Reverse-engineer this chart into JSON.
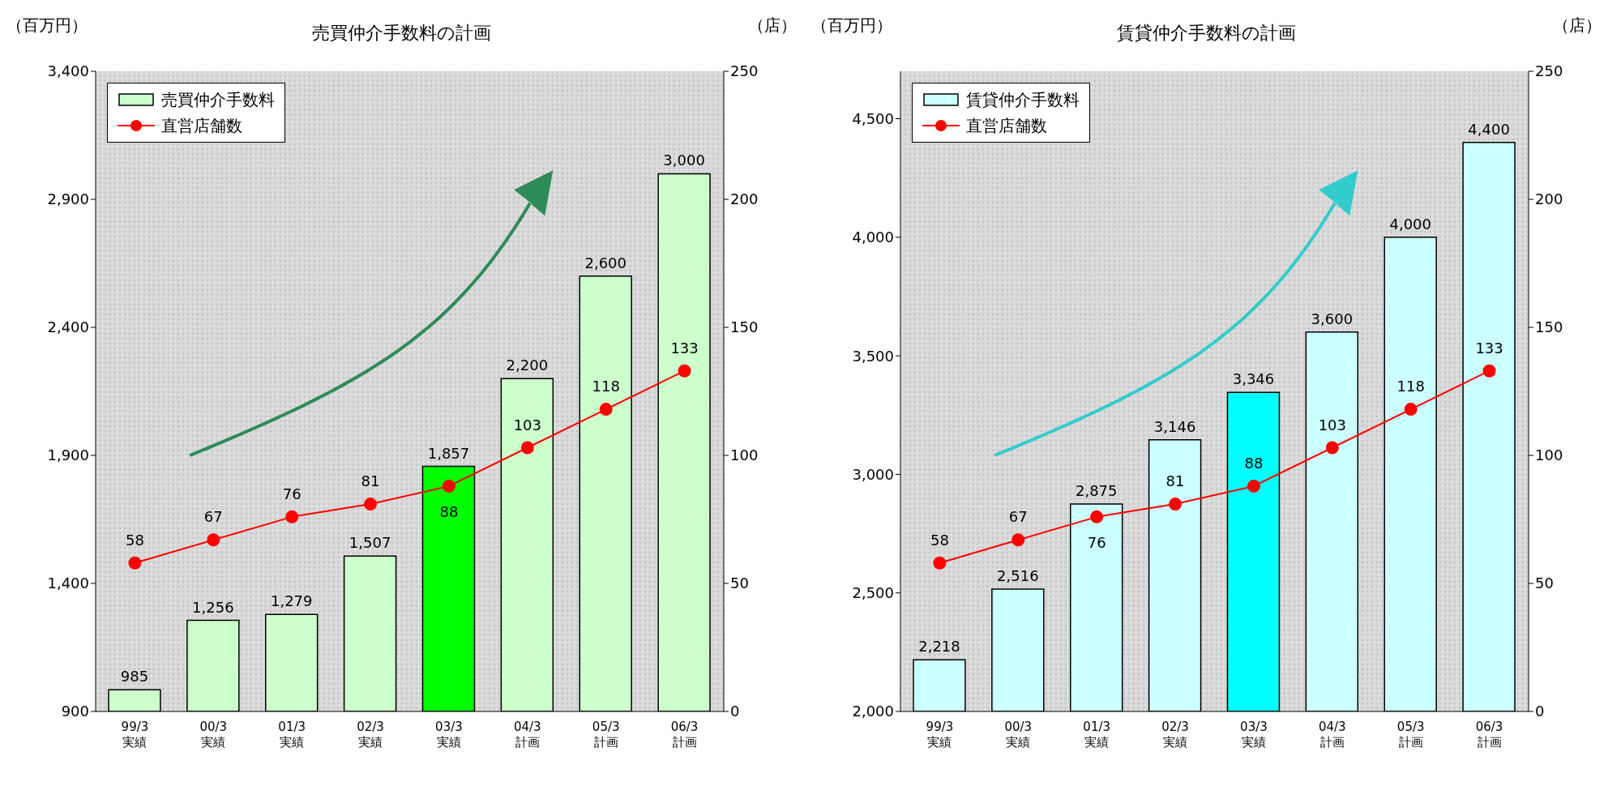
{
  "chart_data": [
    {
      "type": "bar",
      "title": "売買仲介手数料の計画",
      "ylabel": "（百万円）",
      "y2label": "（店）",
      "categories": [
        "99/3\n実績",
        "00/3\n実績",
        "01/3\n実績",
        "02/3\n実績",
        "03/3\n実績",
        "04/3\n計画",
        "05/3\n計画",
        "06/3\n計画"
      ],
      "series": [
        {
          "name": "売買仲介手数料",
          "color": "#ccffcc",
          "colors": [
            "#ccffcc",
            "#ccffcc",
            "#ccffcc",
            "#ccffcc",
            "#00ff00",
            "#ccffcc",
            "#ccffcc",
            "#ccffcc"
          ],
          "values": [
            985,
            1256,
            1279,
            1507,
            1857,
            2200,
            2600,
            3000
          ],
          "value_labels": [
            "985",
            "1,256",
            "1,279",
            "1,507",
            "1,857",
            "2,200",
            "2,600",
            "3,000"
          ]
        },
        {
          "name": "直営店舗数",
          "type": "line",
          "axis": "y2",
          "color": "#ff0000",
          "values": [
            58,
            67,
            76,
            81,
            88,
            103,
            118,
            133
          ],
          "value_labels": [
            "58",
            "67",
            "76",
            "81",
            "88",
            "103",
            "118",
            "133"
          ]
        }
      ],
      "ylim": [
        900,
        3400
      ],
      "yticks": [
        {
          "value": 900,
          "label": "900"
        },
        {
          "value": 1400,
          "label": "1,400"
        },
        {
          "value": 1900,
          "label": "1,900"
        },
        {
          "value": 2400,
          "label": "2,400"
        },
        {
          "value": 2900,
          "label": "2,900"
        },
        {
          "value": 3400,
          "label": "3,400"
        }
      ],
      "y2lim": [
        0,
        250
      ],
      "y2ticks": [
        0,
        50,
        100,
        150,
        200,
        250
      ],
      "legend": "top left",
      "marker": "circle",
      "grid": false
    },
    {
      "type": "bar",
      "title": "賃貸仲介手数料の計画",
      "ylabel": "（百万円）",
      "y2label": "（店）",
      "categories": [
        "99/3\n実績",
        "00/3\n実績",
        "01/3\n実績",
        "02/3\n実績",
        "03/3\n実績",
        "04/3\n計画",
        "05/3\n計画",
        "06/3\n計画"
      ],
      "series": [
        {
          "name": "賃貸仲介手数料",
          "color": "#ccffff",
          "colors": [
            "#ccffff",
            "#ccffff",
            "#ccffff",
            "#ccffff",
            "#00ffff",
            "#ccffff",
            "#ccffff",
            "#ccffff"
          ],
          "values": [
            2218,
            2516,
            2875,
            3146,
            3346,
            3600,
            4000,
            4400
          ],
          "value_labels": [
            "2,218",
            "2,516",
            "2,875",
            "3,146",
            "3,346",
            "3,600",
            "4,000",
            "4,400"
          ]
        },
        {
          "name": "直営店舗数",
          "type": "line",
          "axis": "y2",
          "color": "#ff0000",
          "values": [
            58,
            67,
            76,
            81,
            88,
            103,
            118,
            133
          ],
          "value_labels": [
            "58",
            "67",
            "76",
            "81",
            "88",
            "103",
            "118",
            "133"
          ]
        }
      ],
      "ylim": [
        2000,
        4700
      ],
      "yticks": [
        {
          "value": 2000,
          "label": "2,000"
        },
        {
          "value": 2500,
          "label": "2,500"
        },
        {
          "value": 3000,
          "label": "3,000"
        },
        {
          "value": 3500,
          "label": "3,500"
        },
        {
          "value": 4000,
          "label": "4,000"
        },
        {
          "value": 4500,
          "label": "4,500"
        }
      ],
      "y2lim": [
        0,
        250
      ],
      "y2ticks": [
        0,
        50,
        100,
        150,
        200,
        250
      ],
      "legend": "top left",
      "marker": "circle",
      "grid": false
    }
  ]
}
